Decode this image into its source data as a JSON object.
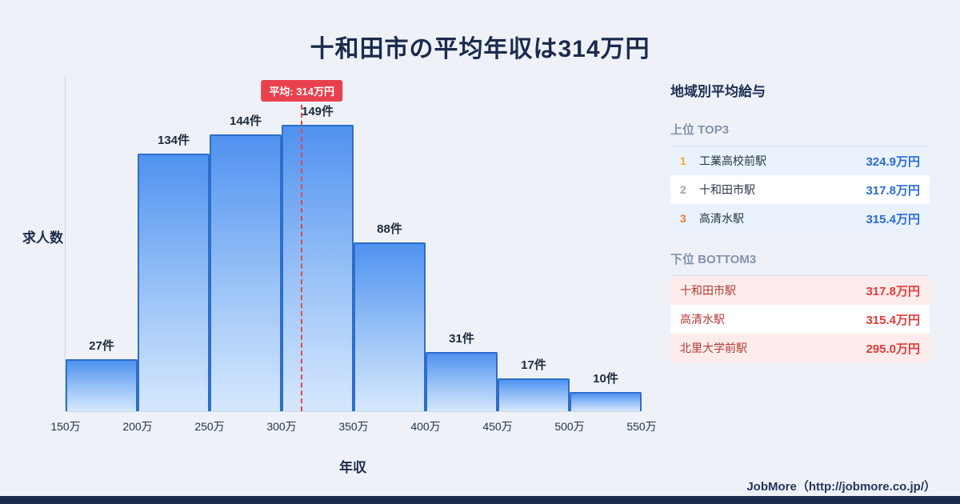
{
  "page": {
    "title": "十和田市の平均年収は314万円",
    "footer_credit": "JobMore（http://jobmore.co.jp/）"
  },
  "chart_data": {
    "type": "bar",
    "title": "十和田市の平均年収は314万円",
    "xlabel": "年収",
    "ylabel": "求人数",
    "bin_edges": [
      150,
      200,
      250,
      300,
      350,
      400,
      450,
      500,
      550
    ],
    "bin_edge_labels": [
      "150万",
      "200万",
      "250万",
      "300万",
      "350万",
      "400万",
      "450万",
      "500万",
      "550万"
    ],
    "values": [
      27,
      134,
      144,
      149,
      88,
      31,
      17,
      10
    ],
    "bar_labels": [
      "27件",
      "134件",
      "144件",
      "149件",
      "88件",
      "31件",
      "17件",
      "10件"
    ],
    "ylim": [
      0,
      175
    ],
    "grid": false,
    "average_line": {
      "value": 314,
      "label": "平均: 314万円"
    },
    "colors": {
      "bar_fill_top": "#4f92f0",
      "bar_fill_bottom": "#d6e8fd",
      "bar_border": "#2e6ecb",
      "average_line": "#e54743",
      "average_badge_bg": "#e8414d",
      "title_text": "#1b2b4d"
    }
  },
  "sidebar": {
    "title": "地域別平均給与",
    "top_section": {
      "heading": "上位 TOP3",
      "rows": [
        {
          "rank": "1",
          "station": "工業高校前駅",
          "value": "324.9万円"
        },
        {
          "rank": "2",
          "station": "十和田市駅",
          "value": "317.8万円"
        },
        {
          "rank": "3",
          "station": "高清水駅",
          "value": "315.4万円"
        }
      ],
      "value_color": "#2b6cd4",
      "highlight_row_bg": "#e9f2fd"
    },
    "bottom_section": {
      "heading": "下位 BOTTOM3",
      "rows": [
        {
          "station": "十和田市駅",
          "value": "317.8万円"
        },
        {
          "station": "高清水駅",
          "value": "315.4万円"
        },
        {
          "station": "北里大学前駅",
          "value": "295.0万円"
        }
      ],
      "value_color": "#e23b3b",
      "highlight_row_bg": "#fdeceb"
    }
  }
}
